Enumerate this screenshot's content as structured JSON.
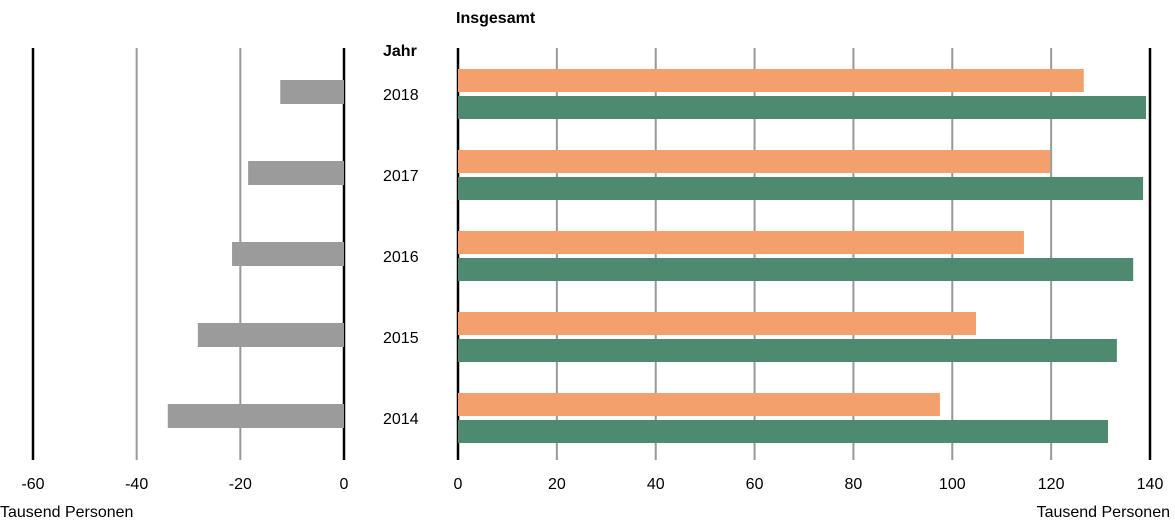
{
  "chart_data": [
    {
      "type": "bar",
      "orientation": "horizontal",
      "values": [
        -12.3,
        -18.5,
        -21.6,
        -28.2,
        -34
      ],
      "color": "#9b9b9b",
      "xlim": [
        -60,
        0
      ],
      "xticks": [
        -60,
        -40,
        -20,
        0
      ],
      "grid": true,
      "xlabel": "Tausend Personen"
    },
    {
      "type": "grouped-bar",
      "orientation": "horizontal",
      "title": "Insgesamt",
      "ylabel": "Jahr",
      "categories": [
        "2018",
        "2017",
        "2016",
        "2015",
        "2014"
      ],
      "series": [
        {
          "color": "#f4a06c",
          "values": [
            126.6,
            119.8,
            114.5,
            104.8,
            97.5
          ]
        },
        {
          "color": "#4e8a70",
          "values": [
            139.2,
            138.6,
            136.6,
            133.3,
            131.5
          ]
        }
      ],
      "xlim": [
        0,
        140
      ],
      "xticks": [
        0,
        20,
        40,
        60,
        80,
        100,
        120,
        140
      ],
      "grid": true,
      "xlabel": "Tausend Personen"
    }
  ]
}
